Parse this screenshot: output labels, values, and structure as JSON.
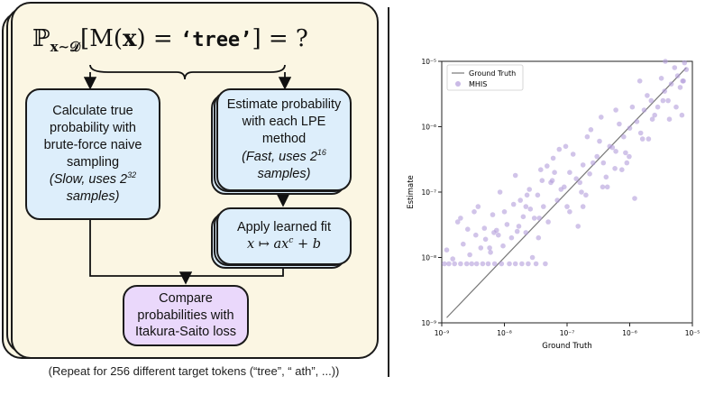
{
  "diagram": {
    "formula": {
      "prob": "ℙ",
      "sub": "x∼𝒟",
      "lhs_open": "[M(",
      "x": "x",
      "lhs_mid": ") = ",
      "token": "‘tree’",
      "lhs_close": "] = ?"
    },
    "brute_force": {
      "line1": "Calculate true",
      "line2": "probability with",
      "line3": "brute-force naive",
      "line4": "sampling",
      "note_a": "(Slow, uses 2",
      "note_exp": "32",
      "note_b": "samples)"
    },
    "estimate": {
      "line1": "Estimate probability",
      "line2": "with each LPE",
      "line3": "method",
      "note_a": "(Fast, uses 2",
      "note_exp": "16",
      "note_b": "samples)"
    },
    "fit": {
      "title": "Apply learned fit",
      "formula": "x ↦ ax",
      "formula_exp": "c",
      "formula_tail": " + b"
    },
    "compare": {
      "line1": "Compare",
      "line2": "probabilities with",
      "line3": "Itakura-Saito loss"
    },
    "caption": "(Repeat for 256 different target tokens (“tree”, “ ath”, ...))"
  },
  "chart_data": {
    "type": "scatter",
    "title": "",
    "xlabel": "Ground Truth",
    "ylabel": "Estimate",
    "x_scale": "log",
    "y_scale": "log",
    "xlim": [
      1e-09,
      1e-05
    ],
    "ylim": [
      1e-09,
      1e-05
    ],
    "x_ticks": [
      "10⁻⁹",
      "10⁻⁸",
      "10⁻⁷",
      "10⁻⁶",
      "10⁻⁵"
    ],
    "y_ticks": [
      "10⁻⁹",
      "10⁻⁸",
      "10⁻⁷",
      "10⁻⁶",
      "10⁻⁵"
    ],
    "grid": false,
    "legend_position": "top-left",
    "colors": {
      "line": "#777777",
      "points": "#b39ddb"
    },
    "reference_line": {
      "name": "Ground Truth",
      "x": [
        1.2e-09,
        8e-06
      ],
      "y": [
        1.2e-09,
        8e-06
      ]
    },
    "series": [
      {
        "name": "MHIS",
        "x": [
          1.1e-09,
          1.3e-09,
          1.6e-09,
          2e-09,
          2.5e-09,
          3e-09,
          3.6e-09,
          4.5e-09,
          5.5e-09,
          7e-09,
          9e-09,
          1.2e-08,
          1.5e-08,
          1.9e-08,
          2.4e-08,
          3.2e-08,
          4.5e-08,
          1.2e-09,
          1.5e-09,
          2.2e-09,
          2.8e-09,
          3.5e-09,
          4.2e-09,
          5e-09,
          6e-09,
          7.5e-09,
          9.5e-09,
          1.3e-08,
          1.7e-08,
          2.2e-08,
          2.8e-08,
          3.6e-08,
          1.8e-09,
          2.6e-09,
          3.3e-09,
          4.8e-09,
          6.5e-09,
          8.5e-09,
          1.1e-08,
          1.4e-08,
          2e-08,
          2.6e-08,
          3.4e-08,
          4.2e-08,
          5.5e-08,
          7e-08,
          9e-08,
          1.1e-07,
          1.4e-07,
          1.8e-07,
          2.3e-07,
          3e-07,
          3.8e-07,
          4.8e-07,
          6e-07,
          8e-07,
          1e-06,
          1.3e-06,
          1.7e-06,
          2.2e-06,
          2.8e-06,
          3.6e-06,
          4.6e-06,
          5.8e-06,
          7e-06,
          8e-06,
          3.8e-09,
          5.8e-09,
          8e-09,
          1e-08,
          1.6e-08,
          2.3e-08,
          3e-08,
          4e-08,
          5e-08,
          6.3e-08,
          8e-08,
          1e-07,
          1.25e-07,
          1.6e-07,
          2e-07,
          2.6e-07,
          3.3e-07,
          4.2e-07,
          5.3e-07,
          6.8e-07,
          8.6e-07,
          1.1e-06,
          1.5e-06,
          1.9e-06,
          2.5e-06,
          3.2e-06,
          4.1e-06,
          5.2e-06,
          6.4e-06,
          1.5e-08,
          2.5e-08,
          3.8e-08,
          6e-08,
          9.5e-08,
          1.5e-07,
          2.4e-07,
          3.7e-07,
          6e-07,
          9e-07,
          1.45e-06,
          2.3e-06,
          3.7e-06,
          5.5e-06,
          7.5e-06,
          2.2e-08,
          4.8e-08,
          1.1e-07,
          2.1e-07,
          4.4e-07,
          9.8e-07,
          2e-06,
          4.3e-06,
          7.2e-06,
          3.5e-08,
          7.5e-08,
          1.7e-07,
          3.5e-07,
          7.5e-07,
          1.6e-06,
          3.4e-06,
          6.8e-06,
          2e-09,
          6.8e-09,
          1.8e-08,
          5.8e-08,
          1.8e-07,
          5.8e-07,
          1.2e-06
        ],
        "y": [
          8e-09,
          8e-09,
          8e-09,
          8e-09,
          8e-09,
          8e-09,
          8e-09,
          8e-09,
          8e-09,
          8e-09,
          8e-09,
          8e-09,
          8e-09,
          8e-09,
          8e-09,
          8e-09,
          8e-09,
          1.3e-08,
          9.5e-09,
          1.6e-08,
          1.1e-08,
          2.2e-08,
          1.4e-08,
          1.9e-08,
          1.2e-08,
          2.6e-08,
          1.5e-08,
          2e-08,
          3e-08,
          2.4e-08,
          1e-08,
          4e-08,
          3.5e-08,
          2.7e-08,
          5e-08,
          2.8e-08,
          4.5e-08,
          1e-07,
          3.2e-08,
          6.5e-08,
          4.2e-08,
          5.5e-08,
          9e-08,
          6e-08,
          1.4e-07,
          7.5e-08,
          1.2e-07,
          2e-07,
          1.6e-07,
          2.6e-07,
          1.9e-07,
          3.5e-07,
          2.8e-07,
          5e-07,
          4.2e-07,
          7e-07,
          9.5e-07,
          1.2e-06,
          1.8e-06,
          2.5e-06,
          2e-06,
          3.5e-06,
          4.5e-06,
          6e-06,
          5e-06,
          7.5e-06,
          6e-08,
          1.4e-08,
          2.2e-08,
          5e-08,
          2.5e-08,
          9e-08,
          4e-08,
          1.5e-07,
          3.5e-08,
          2e-07,
          1.1e-07,
          6e-08,
          3.8e-07,
          1.4e-07,
          9e-08,
          2.8e-07,
          6e-07,
          1.7e-07,
          4.8e-07,
          1.1e-06,
          4e-07,
          2e-06,
          8e-07,
          3e-06,
          1.5e-06,
          5.5e-06,
          2.5e-06,
          8e-06,
          4e-06,
          1.8e-07,
          1.1e-07,
          2.2e-07,
          3.3e-07,
          5e-07,
          3e-08,
          9e-07,
          1.2e-07,
          1.8e-06,
          2.8e-07,
          5e-06,
          1.3e-06,
          1.2e-05,
          2e-06,
          9.5e-06,
          6e-08,
          2.5e-07,
          5e-08,
          7e-07,
          1.2e-07,
          3.5e-07,
          6.5e-07,
          1.3e-06,
          5e-06,
          2e-08,
          4.5e-07,
          1e-07,
          1.4e-06,
          2.2e-07,
          6.5e-07,
          2.5e-06,
          1.5e-06,
          4e-08,
          2.4e-08,
          7.5e-08,
          1.5e-07,
          6e-08,
          2.3e-07,
          8e-08
        ]
      }
    ]
  }
}
